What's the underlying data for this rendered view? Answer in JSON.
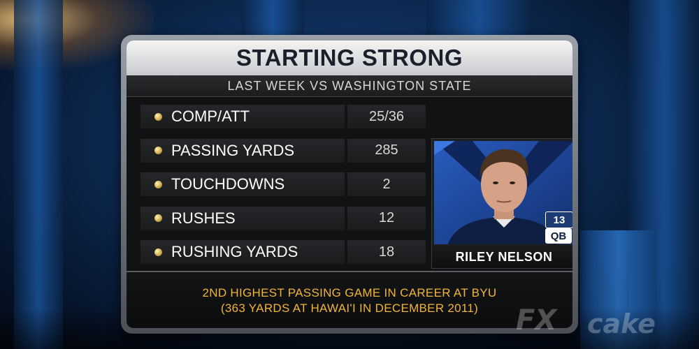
{
  "graphic": {
    "title": "STARTING STRONG",
    "subtitle": "LAST WEEK VS WASHINGTON STATE",
    "stats": [
      {
        "label": "COMP/ATT",
        "value": "25/36"
      },
      {
        "label": "PASSING YARDS",
        "value": "285"
      },
      {
        "label": "TOUCHDOWNS",
        "value": "2"
      },
      {
        "label": "RUSHES",
        "value": "12"
      },
      {
        "label": "RUSHING YARDS",
        "value": "18"
      }
    ],
    "player": {
      "name": "RILEY NELSON",
      "number": "13",
      "position": "QB"
    },
    "footer": {
      "line1": "2ND HIGHEST PASSING GAME IN CAREER AT BYU",
      "line2": "(363 YARDS AT HAWAI'I IN DECEMBER 2011)"
    }
  },
  "watermarks": {
    "left": "FX",
    "right": "cake"
  },
  "colors": {
    "accent_gold": "#f2b533",
    "bullet_gold": "#d7b65a",
    "byu_blue": "#1c3f8a"
  },
  "icons": {
    "bullet": "gold-dot-icon"
  }
}
